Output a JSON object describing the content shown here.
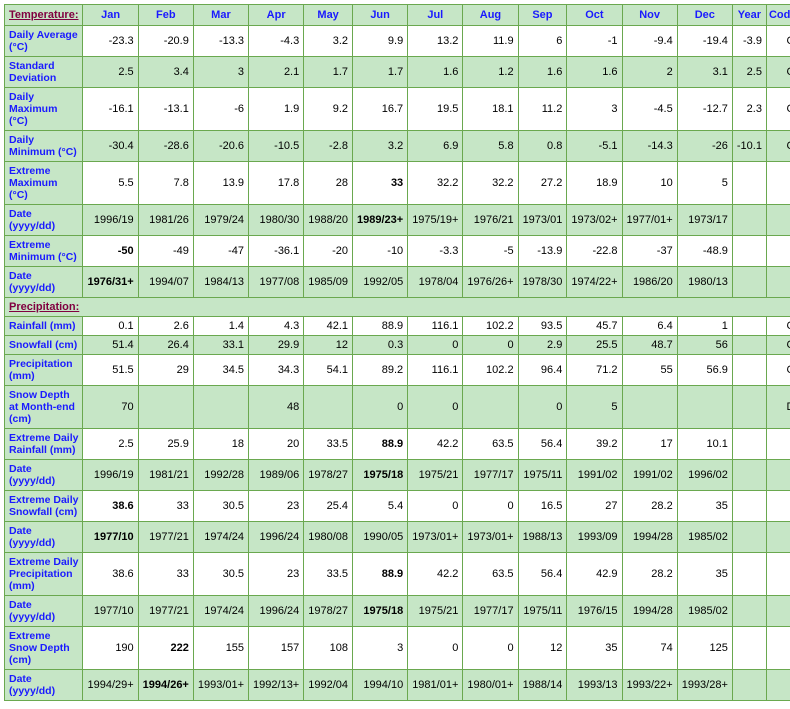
{
  "columns": [
    "Jan",
    "Feb",
    "Mar",
    "Apr",
    "May",
    "Jun",
    "Jul",
    "Aug",
    "Sep",
    "Oct",
    "Nov",
    "Dec",
    "Year",
    "Code"
  ],
  "section1_label": "Temperature:",
  "section2_label": "Precipitation:",
  "rows_temp": [
    {
      "label": "Daily Average (°C)",
      "parity": "odd",
      "cells": [
        "-23.3",
        "-20.9",
        "-13.3",
        "-4.3",
        "3.2",
        "9.9",
        "13.2",
        "11.9",
        "6",
        "-1",
        "-9.4",
        "-19.4",
        "-3.9",
        "C"
      ],
      "bold": []
    },
    {
      "label": "Standard Deviation",
      "parity": "even",
      "cells": [
        "2.5",
        "3.4",
        "3",
        "2.1",
        "1.7",
        "1.7",
        "1.6",
        "1.2",
        "1.6",
        "1.6",
        "2",
        "3.1",
        "2.5",
        "C"
      ],
      "bold": []
    },
    {
      "label": "Daily Maximum (°C)",
      "parity": "odd",
      "cells": [
        "-16.1",
        "-13.1",
        "-6",
        "1.9",
        "9.2",
        "16.7",
        "19.5",
        "18.1",
        "11.2",
        "3",
        "-4.5",
        "-12.7",
        "2.3",
        "C"
      ],
      "bold": []
    },
    {
      "label": "Daily Minimum (°C)",
      "parity": "even",
      "cells": [
        "-30.4",
        "-28.6",
        "-20.6",
        "-10.5",
        "-2.8",
        "3.2",
        "6.9",
        "5.8",
        "0.8",
        "-5.1",
        "-14.3",
        "-26",
        "-10.1",
        "C"
      ],
      "bold": []
    },
    {
      "label": "Extreme Maximum (°C)",
      "parity": "odd",
      "cells": [
        "5.5",
        "7.8",
        "13.9",
        "17.8",
        "28",
        "33",
        "32.2",
        "32.2",
        "27.2",
        "18.9",
        "10",
        "5",
        "",
        ""
      ],
      "bold": [
        5
      ]
    },
    {
      "label": "Date (yyyy/dd)",
      "parity": "even",
      "cells": [
        "1996/19",
        "1981/26",
        "1979/24",
        "1980/30",
        "1988/20",
        "1989/23+",
        "1975/19+",
        "1976/21",
        "1973/01",
        "1973/02+",
        "1977/01+",
        "1973/17",
        "",
        ""
      ],
      "bold": [
        5
      ]
    },
    {
      "label": "Extreme Minimum (°C)",
      "parity": "odd",
      "cells": [
        "-50",
        "-49",
        "-47",
        "-36.1",
        "-20",
        "-10",
        "-3.3",
        "-5",
        "-13.9",
        "-22.8",
        "-37",
        "-48.9",
        "",
        ""
      ],
      "bold": [
        0
      ]
    },
    {
      "label": "Date (yyyy/dd)",
      "parity": "even",
      "cells": [
        "1976/31+",
        "1994/07",
        "1984/13",
        "1977/08",
        "1985/09",
        "1992/05",
        "1978/04",
        "1976/26+",
        "1978/30",
        "1974/22+",
        "1986/20",
        "1980/13",
        "",
        ""
      ],
      "bold": [
        0
      ]
    }
  ],
  "rows_precip": [
    {
      "label": "Rainfall (mm)",
      "parity": "odd",
      "cells": [
        "0.1",
        "2.6",
        "1.4",
        "4.3",
        "42.1",
        "88.9",
        "116.1",
        "102.2",
        "93.5",
        "45.7",
        "6.4",
        "1",
        "",
        "C"
      ],
      "bold": []
    },
    {
      "label": "Snowfall (cm)",
      "parity": "even",
      "cells": [
        "51.4",
        "26.4",
        "33.1",
        "29.9",
        "12",
        "0.3",
        "0",
        "0",
        "2.9",
        "25.5",
        "48.7",
        "56",
        "",
        "C"
      ],
      "bold": []
    },
    {
      "label": "Precipitation (mm)",
      "parity": "odd",
      "cells": [
        "51.5",
        "29",
        "34.5",
        "34.3",
        "54.1",
        "89.2",
        "116.1",
        "102.2",
        "96.4",
        "71.2",
        "55",
        "56.9",
        "",
        "C"
      ],
      "bold": []
    },
    {
      "label": "Snow Depth at Month-end (cm)",
      "parity": "even",
      "cells": [
        "70",
        "",
        "",
        "48",
        "",
        "0",
        "0",
        "",
        "0",
        "5",
        "",
        "",
        "",
        "D"
      ],
      "bold": []
    },
    {
      "label": "Extreme Daily Rainfall (mm)",
      "parity": "odd",
      "cells": [
        "2.5",
        "25.9",
        "18",
        "20",
        "33.5",
        "88.9",
        "42.2",
        "63.5",
        "56.4",
        "39.2",
        "17",
        "10.1",
        "",
        ""
      ],
      "bold": [
        5
      ]
    },
    {
      "label": "Date (yyyy/dd)",
      "parity": "even",
      "cells": [
        "1996/19",
        "1981/21",
        "1992/28",
        "1989/06",
        "1978/27",
        "1975/18",
        "1975/21",
        "1977/17",
        "1975/11",
        "1991/02",
        "1991/02",
        "1996/02",
        "",
        ""
      ],
      "bold": [
        5
      ]
    },
    {
      "label": "Extreme Daily Snowfall (cm)",
      "parity": "odd",
      "cells": [
        "38.6",
        "33",
        "30.5",
        "23",
        "25.4",
        "5.4",
        "0",
        "0",
        "16.5",
        "27",
        "28.2",
        "35",
        "",
        ""
      ],
      "bold": [
        0
      ]
    },
    {
      "label": "Date (yyyy/dd)",
      "parity": "even",
      "cells": [
        "1977/10",
        "1977/21",
        "1974/24",
        "1996/24",
        "1980/08",
        "1990/05",
        "1973/01+",
        "1973/01+",
        "1988/13",
        "1993/09",
        "1994/28",
        "1985/02",
        "",
        ""
      ],
      "bold": [
        0
      ]
    },
    {
      "label": "Extreme Daily Precipitation (mm)",
      "parity": "odd",
      "cells": [
        "38.6",
        "33",
        "30.5",
        "23",
        "33.5",
        "88.9",
        "42.2",
        "63.5",
        "56.4",
        "42.9",
        "28.2",
        "35",
        "",
        ""
      ],
      "bold": [
        5
      ]
    },
    {
      "label": "Date (yyyy/dd)",
      "parity": "even",
      "cells": [
        "1977/10",
        "1977/21",
        "1974/24",
        "1996/24",
        "1978/27",
        "1975/18",
        "1975/21",
        "1977/17",
        "1975/11",
        "1976/15",
        "1994/28",
        "1985/02",
        "",
        ""
      ],
      "bold": [
        5
      ]
    },
    {
      "label": "Extreme Snow Depth (cm)",
      "parity": "odd",
      "cells": [
        "190",
        "222",
        "155",
        "157",
        "108",
        "3",
        "0",
        "0",
        "12",
        "35",
        "74",
        "125",
        "",
        ""
      ],
      "bold": [
        1
      ]
    },
    {
      "label": "Date (yyyy/dd)",
      "parity": "even",
      "cells": [
        "1994/29+",
        "1994/26+",
        "1993/01+",
        "1992/13+",
        "1992/04",
        "1994/10",
        "1981/01+",
        "1980/01+",
        "1988/14",
        "1993/13",
        "1993/22+",
        "1993/28+",
        "",
        ""
      ],
      "bold": [
        1
      ]
    }
  ]
}
